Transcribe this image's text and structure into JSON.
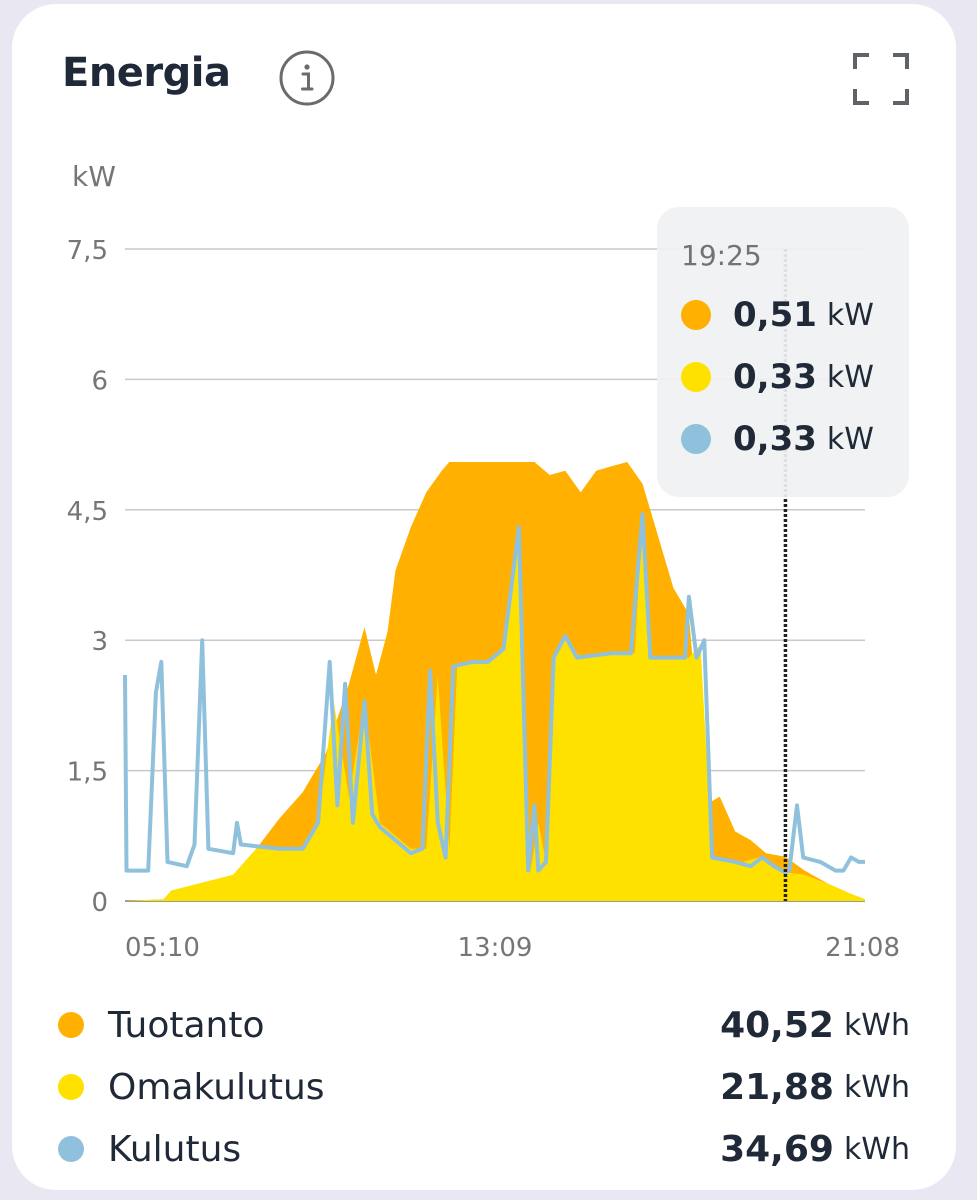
{
  "header": {
    "title": "Energia",
    "info_icon": "info-icon",
    "expand_icon": "fullscreen-icon"
  },
  "chart_data": {
    "type": "area",
    "ylabel": "kW",
    "ylim": [
      0,
      7.5
    ],
    "y_ticks": [
      "0",
      "1,5",
      "3",
      "4,5",
      "6",
      "7,5"
    ],
    "x_ticks": [
      "05:10",
      "13:09",
      "21:08"
    ],
    "grid": true,
    "series": [
      {
        "name": "Tuotanto",
        "color": "#FFB000",
        "points": [
          [
            "05:10",
            0.0
          ],
          [
            "06:00",
            0.02
          ],
          [
            "06:10",
            0.12
          ],
          [
            "07:30",
            0.3
          ],
          [
            "08:00",
            0.6
          ],
          [
            "08:30",
            0.95
          ],
          [
            "09:00",
            1.25
          ],
          [
            "09:30",
            1.7
          ],
          [
            "10:00",
            2.5
          ],
          [
            "10:20",
            3.15
          ],
          [
            "10:35",
            2.6
          ],
          [
            "10:50",
            3.1
          ],
          [
            "11:00",
            3.8
          ],
          [
            "11:20",
            4.3
          ],
          [
            "11:40",
            4.7
          ],
          [
            "12:00",
            4.95
          ],
          [
            "12:10",
            5.05
          ],
          [
            "12:40",
            5.05
          ],
          [
            "13:20",
            5.05
          ],
          [
            "14:00",
            5.05
          ],
          [
            "14:20",
            4.9
          ],
          [
            "14:40",
            4.95
          ],
          [
            "15:00",
            4.7
          ],
          [
            "15:20",
            4.95
          ],
          [
            "15:40",
            5.0
          ],
          [
            "16:00",
            5.05
          ],
          [
            "16:20",
            4.8
          ],
          [
            "16:40",
            4.2
          ],
          [
            "17:00",
            3.6
          ],
          [
            "17:20",
            3.3
          ],
          [
            "17:40",
            1.1
          ],
          [
            "18:00",
            1.2
          ],
          [
            "18:20",
            0.8
          ],
          [
            "18:40",
            0.7
          ],
          [
            "19:00",
            0.55
          ],
          [
            "19:25",
            0.51
          ],
          [
            "19:50",
            0.35
          ],
          [
            "20:20",
            0.2
          ],
          [
            "20:50",
            0.08
          ],
          [
            "21:08",
            0.02
          ]
        ]
      },
      {
        "name": "Omakulutus",
        "color": "#FFE100",
        "points": [
          [
            "05:10",
            0.0
          ],
          [
            "06:00",
            0.02
          ],
          [
            "06:10",
            0.12
          ],
          [
            "07:30",
            0.3
          ],
          [
            "08:00",
            0.6
          ],
          [
            "09:00",
            0.6
          ],
          [
            "09:20",
            0.9
          ],
          [
            "09:40",
            2.3
          ],
          [
            "10:00",
            1.2
          ],
          [
            "10:20",
            2.3
          ],
          [
            "10:40",
            0.9
          ],
          [
            "11:20",
            0.6
          ],
          [
            "11:40",
            0.6
          ],
          [
            "11:55",
            2.6
          ],
          [
            "12:10",
            0.6
          ],
          [
            "12:20",
            2.7
          ],
          [
            "12:40",
            2.75
          ],
          [
            "13:00",
            2.75
          ],
          [
            "13:20",
            2.9
          ],
          [
            "13:40",
            4.3
          ],
          [
            "13:55",
            0.35
          ],
          [
            "14:05",
            0.9
          ],
          [
            "14:15",
            0.45
          ],
          [
            "14:25",
            2.8
          ],
          [
            "14:40",
            3.0
          ],
          [
            "15:00",
            2.8
          ],
          [
            "15:40",
            2.85
          ],
          [
            "16:10",
            2.85
          ],
          [
            "16:20",
            4.45
          ],
          [
            "16:30",
            2.8
          ],
          [
            "17:00",
            2.8
          ],
          [
            "17:20",
            2.8
          ],
          [
            "17:35",
            2.95
          ],
          [
            "17:50",
            0.5
          ],
          [
            "18:30",
            0.45
          ],
          [
            "18:50",
            0.5
          ],
          [
            "19:10",
            0.4
          ],
          [
            "19:25",
            0.33
          ],
          [
            "19:50",
            0.3
          ],
          [
            "20:20",
            0.2
          ],
          [
            "20:50",
            0.08
          ],
          [
            "21:08",
            0.02
          ]
        ]
      },
      {
        "name": "Kulutus",
        "color": "#8FC1DC",
        "points": [
          [
            "05:10",
            2.6
          ],
          [
            "05:12",
            0.35
          ],
          [
            "05:40",
            0.35
          ],
          [
            "05:50",
            2.4
          ],
          [
            "05:57",
            2.75
          ],
          [
            "06:05",
            0.45
          ],
          [
            "06:30",
            0.4
          ],
          [
            "06:40",
            0.65
          ],
          [
            "06:50",
            3.0
          ],
          [
            "06:58",
            0.6
          ],
          [
            "07:30",
            0.55
          ],
          [
            "07:35",
            0.9
          ],
          [
            "07:40",
            0.65
          ],
          [
            "08:30",
            0.6
          ],
          [
            "09:00",
            0.6
          ],
          [
            "09:20",
            0.9
          ],
          [
            "09:35",
            2.75
          ],
          [
            "09:45",
            1.1
          ],
          [
            "09:55",
            2.5
          ],
          [
            "10:05",
            0.9
          ],
          [
            "10:20",
            2.3
          ],
          [
            "10:30",
            1.0
          ],
          [
            "10:40",
            0.85
          ],
          [
            "11:20",
            0.55
          ],
          [
            "11:35",
            0.6
          ],
          [
            "11:45",
            2.65
          ],
          [
            "11:55",
            0.9
          ],
          [
            "12:05",
            0.5
          ],
          [
            "12:15",
            2.7
          ],
          [
            "12:40",
            2.75
          ],
          [
            "13:00",
            2.75
          ],
          [
            "13:20",
            2.9
          ],
          [
            "13:40",
            4.3
          ],
          [
            "13:52",
            0.35
          ],
          [
            "14:00",
            1.1
          ],
          [
            "14:05",
            0.35
          ],
          [
            "14:15",
            0.45
          ],
          [
            "14:25",
            2.8
          ],
          [
            "14:40",
            3.05
          ],
          [
            "14:55",
            2.8
          ],
          [
            "15:40",
            2.85
          ],
          [
            "16:05",
            2.85
          ],
          [
            "16:20",
            4.45
          ],
          [
            "16:30",
            2.8
          ],
          [
            "17:00",
            2.8
          ],
          [
            "17:15",
            2.8
          ],
          [
            "17:20",
            3.5
          ],
          [
            "17:30",
            2.8
          ],
          [
            "17:40",
            3.0
          ],
          [
            "17:50",
            0.5
          ],
          [
            "18:20",
            0.45
          ],
          [
            "18:40",
            0.4
          ],
          [
            "18:55",
            0.5
          ],
          [
            "19:10",
            0.4
          ],
          [
            "19:25",
            0.33
          ],
          [
            "19:30",
            0.35
          ],
          [
            "19:40",
            1.1
          ],
          [
            "19:48",
            0.5
          ],
          [
            "20:10",
            0.45
          ],
          [
            "20:30",
            0.35
          ],
          [
            "20:40",
            0.35
          ],
          [
            "20:50",
            0.5
          ],
          [
            "21:00",
            0.45
          ],
          [
            "21:08",
            0.45
          ]
        ]
      }
    ],
    "cursor": {
      "time": "19:25",
      "items": [
        {
          "value": "0,51",
          "unit": "kW",
          "color": "#FFB000"
        },
        {
          "value": "0,33",
          "unit": "kW",
          "color": "#FFE100"
        },
        {
          "value": "0,33",
          "unit": "kW",
          "color": "#8FC1DC"
        }
      ]
    }
  },
  "legend": [
    {
      "label": "Tuotanto",
      "value": "40,52",
      "unit": "kWh",
      "color": "#FFB000"
    },
    {
      "label": "Omakulutus",
      "value": "21,88",
      "unit": "kWh",
      "color": "#FFE100"
    },
    {
      "label": "Kulutus",
      "value": "34,69",
      "unit": "kWh",
      "color": "#8FC1DC"
    }
  ]
}
